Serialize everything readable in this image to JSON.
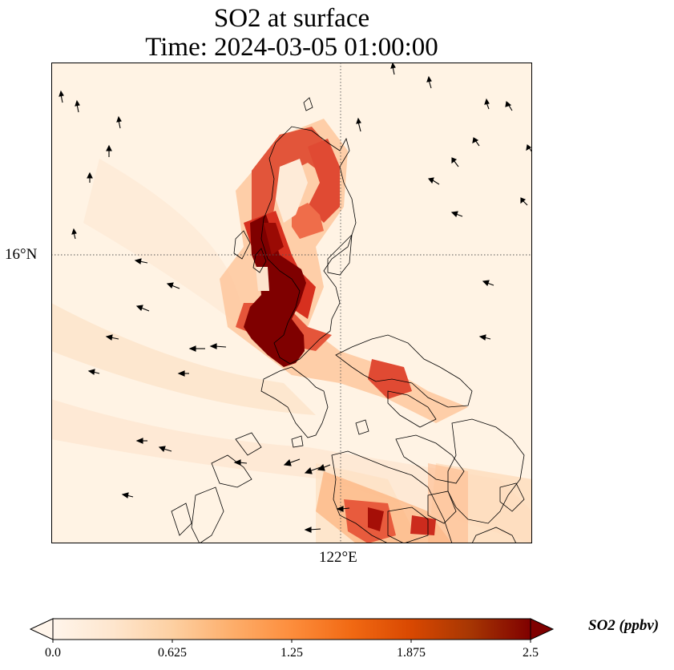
{
  "title": {
    "line1": "SO2 at surface",
    "line2": "Time: 2024-03-05 01:00:00"
  },
  "axes": {
    "lat_label": "16°N",
    "lon_label": "122°E"
  },
  "colorbar": {
    "label": "SO2 (ppbv)",
    "ticks": [
      "0.0",
      "0.625",
      "1.25",
      "1.875",
      "2.5"
    ],
    "min": 0,
    "max": 2.5,
    "extend": "both",
    "colormap": "OrRd",
    "colors": [
      "#fff5eb",
      "#fee6ce",
      "#fdd0a2",
      "#fdae6b",
      "#fd8d3c",
      "#f16913",
      "#d94801",
      "#a63603",
      "#7f0000"
    ]
  },
  "map": {
    "gridlines": "dotted",
    "coastline_color": "#000000",
    "wind_vectors": true
  }
}
